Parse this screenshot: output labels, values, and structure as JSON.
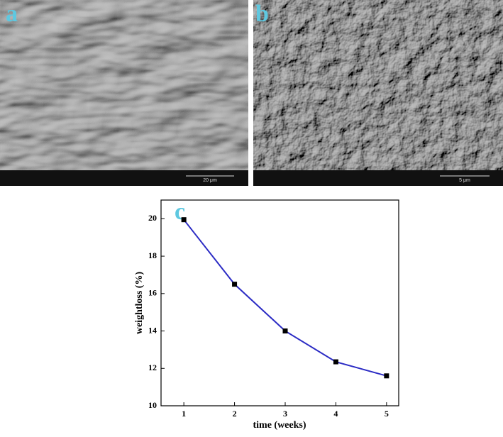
{
  "panels": [
    {
      "label": "a",
      "scale_bar": "20 μm"
    },
    {
      "label": "b",
      "scale_bar": "5 μm"
    }
  ],
  "chart_data": {
    "type": "line",
    "panel_label": "c",
    "x_label": "time (weeks)",
    "y_label": "weightloss (%)",
    "x": [
      1,
      2,
      3,
      4,
      5
    ],
    "series": [
      {
        "color": "#2b2bc4",
        "marker_color": "#000000",
        "values": [
          19.95,
          16.5,
          14.0,
          12.35,
          11.6
        ]
      }
    ],
    "xlim": [
      0.55,
      5.24
    ],
    "ylim": [
      10,
      21
    ],
    "xticks": [
      1,
      2,
      3,
      4,
      5
    ],
    "yticks": [
      10,
      12,
      14,
      16,
      18,
      20
    ]
  }
}
